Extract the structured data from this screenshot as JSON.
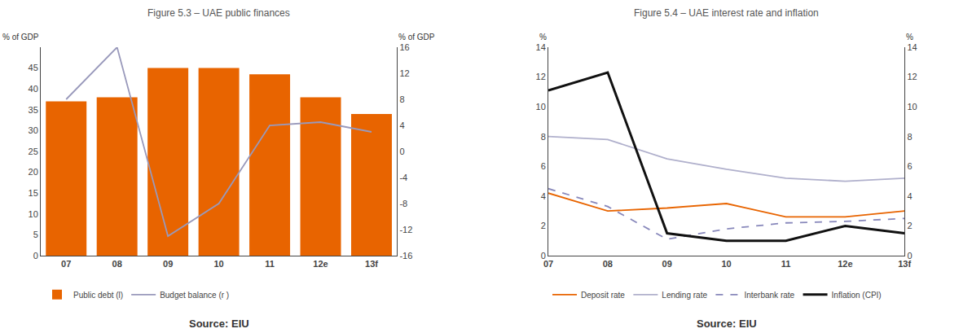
{
  "chart_data": [
    {
      "type": "bar",
      "title": "Figure 5.3 – UAE public finances",
      "categories": [
        "07",
        "08",
        "09",
        "10",
        "11",
        "12e",
        "13f"
      ],
      "ylabel": "% of GDP",
      "y2label": "% of GDP",
      "series": [
        {
          "name": "Public debt (l)",
          "type": "bar",
          "color": "#e86400",
          "values": [
            37,
            38,
            45,
            45,
            43.5,
            38,
            34
          ]
        },
        {
          "name": "Budget balance (r )",
          "type": "line",
          "axis": "y2",
          "color": "#9999bb",
          "values": [
            8,
            16,
            -13,
            -8,
            4,
            4.5,
            3
          ]
        }
      ],
      "ylim": [
        0,
        50
      ],
      "yticks": [
        0,
        5,
        10,
        15,
        20,
        25,
        30,
        35,
        40,
        45
      ],
      "y2lim": [
        -16,
        16
      ],
      "y2ticks": [
        -16,
        -12,
        -8,
        -4,
        0,
        4,
        8,
        12,
        16
      ],
      "grid": false,
      "legend": "bottom",
      "source": "Source: EIU"
    },
    {
      "type": "line",
      "title": "Figure 5.4 – UAE interest rate and inflation",
      "categories": [
        "07",
        "08",
        "09",
        "10",
        "11",
        "12e",
        "13f"
      ],
      "ylabel": "%",
      "y2label": "%",
      "series": [
        {
          "name": "Deposit rate",
          "color": "#e86400",
          "line_style": "solid",
          "values": [
            4.2,
            3.0,
            3.2,
            3.5,
            2.6,
            2.6,
            3.0
          ]
        },
        {
          "name": "Lending rate",
          "color": "#b0b0cc",
          "line_style": "solid",
          "values": [
            8.0,
            7.8,
            6.5,
            5.8,
            5.2,
            5.0,
            5.2
          ]
        },
        {
          "name": "Interbank rate",
          "color": "#8888bb",
          "line_style": "dashed",
          "values": [
            4.5,
            3.3,
            1.1,
            1.8,
            2.2,
            2.3,
            2.5
          ]
        },
        {
          "name": "Inflation (CPI)",
          "color": "#111111",
          "line_style": "solid",
          "values": [
            11.1,
            12.3,
            1.5,
            1.0,
            1.0,
            2.0,
            1.5
          ]
        }
      ],
      "ylim": [
        0,
        14
      ],
      "yticks": [
        0,
        2,
        4,
        6,
        8,
        10,
        12,
        14
      ],
      "y2lim": [
        0,
        14
      ],
      "y2ticks": [
        0,
        2,
        4,
        6,
        8,
        10,
        12,
        14
      ],
      "grid": false,
      "legend": "bottom",
      "source": "Source: EIU"
    }
  ]
}
